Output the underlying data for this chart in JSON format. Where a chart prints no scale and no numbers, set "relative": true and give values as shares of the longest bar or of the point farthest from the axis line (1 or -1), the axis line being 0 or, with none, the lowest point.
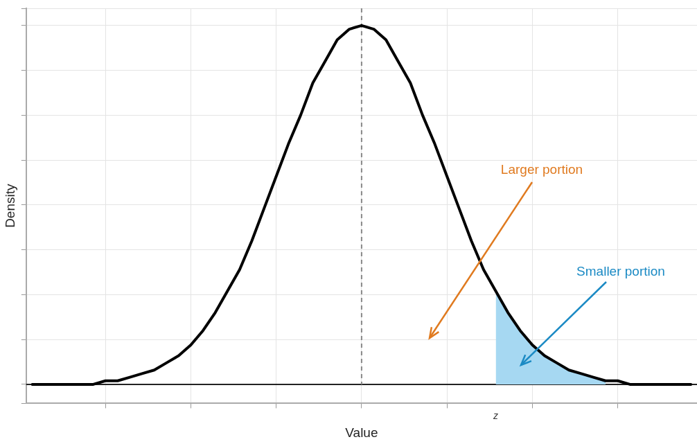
{
  "chart_data": {
    "type": "line",
    "xlabel": "Value",
    "ylabel": "Density",
    "relative": true,
    "grid": true,
    "tick_labels": "x",
    "marker": "none",
    "line_style": "solid",
    "legend": false,
    "categories": [
      null,
      null,
      null,
      null,
      null,
      null,
      null,
      null,
      null,
      null,
      null,
      null,
      null,
      null,
      null,
      null,
      null,
      null,
      null,
      null,
      null,
      null,
      null,
      null,
      null,
      null,
      null,
      null,
      null,
      null,
      null,
      null,
      null,
      null,
      null,
      null,
      null,
      null,
      null,
      null,
      null,
      null,
      null,
      null,
      null,
      null,
      null,
      null,
      null,
      null,
      null,
      null,
      null,
      null,
      null
    ],
    "series": [
      {
        "type": "area",
        "color": "#a6d8f2",
        "values": [
          null,
          null,
          null,
          null,
          null,
          null,
          null,
          null,
          null,
          null,
          null,
          null,
          null,
          null,
          null,
          null,
          null,
          null,
          null,
          null,
          null,
          null,
          null,
          null,
          null,
          null,
          null,
          null,
          null,
          null,
          null,
          null,
          null,
          null,
          null,
          null,
          null,
          null,
          0.26,
          0.2,
          0.15,
          0.11,
          0.08,
          0.06,
          0.04,
          0.03,
          0.02,
          0.01,
          null,
          null,
          null,
          null,
          null,
          null,
          null
        ]
      },
      {
        "type": "line",
        "color": "#000000",
        "values": [
          0,
          0,
          0,
          0,
          0,
          0,
          0.01,
          0.01,
          0.02,
          0.03,
          0.04,
          0.06,
          0.08,
          0.11,
          0.15,
          0.2,
          0.26,
          0.32,
          0.4,
          0.49,
          0.58,
          0.67,
          0.75,
          0.84,
          0.9,
          0.96,
          0.99,
          1,
          0.99,
          0.96,
          0.9,
          0.84,
          0.75,
          0.67,
          0.58,
          0.49,
          0.4,
          0.32,
          0.26,
          0.2,
          0.15,
          0.11,
          0.08,
          0.06,
          0.04,
          0.03,
          0.02,
          0.01,
          0.01,
          0,
          0,
          0,
          0,
          0,
          0
        ]
      }
    ],
    "annotations": [
      "Larger portion",
      "Smaller portion",
      "z"
    ]
  }
}
